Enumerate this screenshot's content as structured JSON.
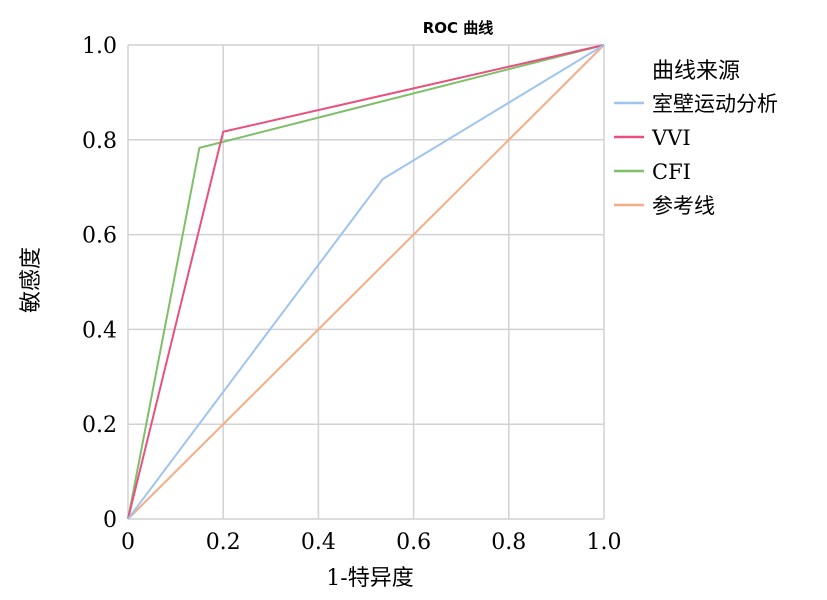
{
  "chart_data": {
    "type": "line",
    "title": "ROC 曲线",
    "xlabel": "1-特异度",
    "ylabel": "敏感度",
    "xlim": [
      0,
      1
    ],
    "ylim": [
      0,
      1
    ],
    "x_ticks": [
      "0",
      "0.2",
      "0.4",
      "0.6",
      "0.8",
      "1.0"
    ],
    "y_ticks": [
      "0",
      "0.2",
      "0.4",
      "0.6",
      "0.8",
      "1.0"
    ],
    "grid": true,
    "legend": {
      "title": "曲线来源",
      "position": "right"
    },
    "series": [
      {
        "name": "室壁运动分析",
        "color": "#9fc5ef",
        "points": [
          [
            0,
            0
          ],
          [
            0.535,
            0.717
          ],
          [
            1.0,
            1.0
          ]
        ]
      },
      {
        "name": "VVI",
        "color": "#e8517f",
        "points": [
          [
            0,
            0
          ],
          [
            0.2,
            0.817
          ],
          [
            1.0,
            1.0
          ]
        ]
      },
      {
        "name": "CFI",
        "color": "#7fbf6a",
        "points": [
          [
            0,
            0
          ],
          [
            0.15,
            0.783
          ],
          [
            1.0,
            1.0
          ]
        ]
      },
      {
        "name": "参考线",
        "color": "#f5ac88",
        "points": [
          [
            0,
            0
          ],
          [
            1.0,
            1.0
          ]
        ]
      }
    ]
  }
}
